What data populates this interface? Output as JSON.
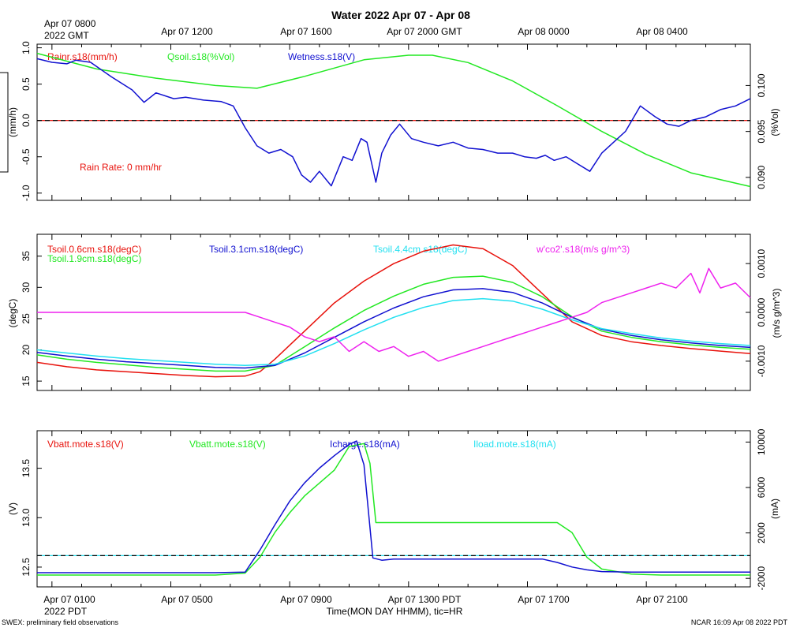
{
  "title": "Water 2022 Apr 07 - Apr 08",
  "top_axis": {
    "first_label_line1": "Apr 07 0800",
    "first_label_line2": "2022 GMT",
    "labels": [
      "Apr 07 1200",
      "Apr 07 1600",
      "Apr 07 2000 GMT",
      "Apr 08 0000",
      "Apr 08 0400"
    ]
  },
  "bottom_axis": {
    "labels": [
      "Apr 07 0100",
      "Apr 07 0500",
      "Apr 07 0900",
      "Apr 07 1300 PDT",
      "Apr 07 1700",
      "Apr 07 2100"
    ],
    "year_label": "2022 PDT",
    "xlabel": "Time(MON DAY HHMM), tic=HR"
  },
  "footer": {
    "left": "SWEX: preliminary field observations",
    "right": "NCAR 16:09 Apr 08 2022 PDT"
  },
  "colors": {
    "red": "#e8120c",
    "green": "#22e822",
    "blue": "#1010d0",
    "cyan": "#22e0f0",
    "magenta": "#ee22ee",
    "black": "#000000"
  },
  "chart_data": [
    {
      "type": "line",
      "panel": "water",
      "title": "Rain / Soil moisture / Wetness",
      "x_range_hours_pdt": [
        0,
        24
      ],
      "left_axis": {
        "label": "(mm/h)",
        "range": [
          -1.1,
          1.05
        ],
        "ticks": [
          "-1.0",
          "-0.5",
          "0.0",
          "0.5",
          "1.0"
        ],
        "tick_values": [
          -1.0,
          -0.5,
          0.0,
          0.5,
          1.0
        ]
      },
      "right_axis": {
        "label": "(%Vol)",
        "range": [
          0.0875,
          0.1045
        ],
        "ticks": [
          "0.090",
          "0.095",
          "0.100"
        ],
        "tick_values": [
          0.09,
          0.095,
          0.1
        ]
      },
      "legend": [
        {
          "name": "Rainr.s18(mm/h)",
          "color_key": "red"
        },
        {
          "name": "Qsoil.s18(%Vol)",
          "color_key": "green"
        },
        {
          "name": "Wetness.s18(V)",
          "color_key": "blue"
        }
      ],
      "annotation": "Rain Rate: 0 mm/hr",
      "series": [
        {
          "name": "Rainr.s18(mm/h)",
          "color_key": "red",
          "axis": "left",
          "dashed_black": true,
          "x": [
            0,
            24
          ],
          "values": [
            0.0,
            0.0
          ]
        },
        {
          "name": "Qsoil.s18(%Vol)",
          "color_key": "green",
          "axis": "right",
          "x": [
            0,
            2,
            4,
            6,
            7.4,
            9,
            11,
            12.5,
            13.3,
            14.5,
            16,
            17.5,
            19,
            20.5,
            22,
            24
          ],
          "values": [
            0.1035,
            0.1018,
            0.1008,
            0.1,
            0.0997,
            0.101,
            0.1028,
            0.1033,
            0.1033,
            0.1025,
            0.1005,
            0.0978,
            0.095,
            0.0925,
            0.0905,
            0.089
          ]
        },
        {
          "name": "Wetness.s18(V)",
          "color_key": "blue",
          "axis": "left",
          "x": [
            0,
            0.5,
            1,
            1.3,
            1.8,
            2.5,
            3.2,
            3.6,
            4,
            4.6,
            5,
            5.6,
            6.2,
            6.6,
            7,
            7.4,
            7.8,
            8.2,
            8.6,
            8.9,
            9.2,
            9.5,
            9.9,
            10.3,
            10.6,
            10.9,
            11.1,
            11.4,
            11.6,
            11.9,
            12.2,
            12.6,
            13,
            13.5,
            14,
            14.5,
            15,
            15.5,
            16,
            16.4,
            16.8,
            17.1,
            17.4,
            17.8,
            18.2,
            18.6,
            19,
            19.4,
            19.8,
            20.3,
            20.8,
            21.2,
            21.6,
            22,
            22.5,
            23,
            23.5,
            24
          ],
          "values": [
            0.85,
            0.8,
            0.78,
            0.83,
            0.8,
            0.6,
            0.42,
            0.25,
            0.38,
            0.3,
            0.32,
            0.28,
            0.26,
            0.2,
            -0.1,
            -0.35,
            -0.45,
            -0.4,
            -0.5,
            -0.75,
            -0.85,
            -0.7,
            -0.9,
            -0.5,
            -0.55,
            -0.25,
            -0.3,
            -0.85,
            -0.45,
            -0.2,
            -0.05,
            -0.25,
            -0.3,
            -0.35,
            -0.3,
            -0.38,
            -0.4,
            -0.45,
            -0.45,
            -0.5,
            -0.52,
            -0.48,
            -0.55,
            -0.5,
            -0.6,
            -0.7,
            -0.45,
            -0.3,
            -0.15,
            0.2,
            0.05,
            -0.05,
            -0.08,
            0.0,
            0.05,
            0.15,
            0.2,
            0.3
          ]
        }
      ]
    },
    {
      "type": "line",
      "panel": "soil_temperature",
      "title": "Soil temperature / CO2 flux",
      "x_range_hours_pdt": [
        0,
        24
      ],
      "left_axis": {
        "label": "(degC)",
        "range": [
          13.5,
          38.5
        ],
        "ticks": [
          "15",
          "20",
          "25",
          "30",
          "35"
        ],
        "tick_values": [
          15,
          20,
          25,
          30,
          35
        ]
      },
      "right_axis": {
        "label": "(m/s g/m^3)",
        "range": [
          -0.0016,
          0.0016
        ],
        "ticks": [
          "-0.0010",
          "0.0000",
          "0.0010"
        ],
        "tick_values": [
          -0.001,
          0.0,
          0.001
        ]
      },
      "legend": [
        {
          "name": "Tsoil.0.6cm.s18(degC)",
          "color_key": "red"
        },
        {
          "name": "Tsoil.1.9cm.s18(degC)",
          "color_key": "green"
        },
        {
          "name": "Tsoil.3.1cm.s18(degC)",
          "color_key": "blue"
        },
        {
          "name": "Tsoil.4.4cm.s18(degC)",
          "color_key": "cyan"
        },
        {
          "name": "w'co2'.s18(m/s g/m^3)",
          "color_key": "magenta"
        }
      ],
      "series": [
        {
          "name": "Tsoil.0.6cm.s18(degC)",
          "color_key": "red",
          "axis": "left",
          "x": [
            0,
            1,
            2,
            3,
            4,
            5,
            6,
            7,
            7.5,
            8,
            9,
            10,
            11,
            12,
            13,
            14,
            15,
            16,
            17,
            18,
            19,
            20,
            21,
            22,
            23,
            24
          ],
          "values": [
            18.0,
            17.3,
            16.8,
            16.5,
            16.2,
            15.9,
            15.7,
            15.8,
            16.5,
            18.5,
            23.0,
            27.5,
            31.0,
            33.8,
            35.8,
            36.8,
            36.2,
            33.5,
            29.0,
            24.5,
            22.3,
            21.3,
            20.7,
            20.2,
            19.8,
            19.4
          ]
        },
        {
          "name": "Tsoil.1.9cm.s18(degC)",
          "color_key": "green",
          "axis": "left",
          "x": [
            0,
            1,
            2,
            3,
            4,
            5,
            6,
            7,
            8,
            9,
            10,
            11,
            12,
            13,
            14,
            15,
            16,
            17,
            18,
            19,
            20,
            21,
            22,
            23,
            24
          ],
          "values": [
            19.2,
            18.5,
            18.0,
            17.6,
            17.2,
            16.9,
            16.6,
            16.6,
            17.5,
            20.5,
            23.5,
            26.3,
            28.6,
            30.5,
            31.6,
            31.8,
            30.8,
            28.5,
            25.3,
            23.0,
            22.0,
            21.3,
            20.8,
            20.4,
            20.1
          ]
        },
        {
          "name": "Tsoil.3.1cm.s18(degC)",
          "color_key": "blue",
          "axis": "left",
          "x": [
            0,
            1,
            2,
            3,
            4,
            5,
            6,
            7,
            8,
            9,
            10,
            11,
            12,
            13,
            14,
            15,
            16,
            17,
            18,
            19,
            20,
            21,
            22,
            23,
            24
          ],
          "values": [
            19.6,
            19.0,
            18.5,
            18.1,
            17.8,
            17.5,
            17.2,
            17.1,
            17.5,
            19.5,
            22.0,
            24.5,
            26.7,
            28.5,
            29.6,
            29.8,
            29.2,
            27.5,
            25.2,
            23.3,
            22.3,
            21.6,
            21.1,
            20.7,
            20.4
          ]
        },
        {
          "name": "Tsoil.4.4cm.s18(degC)",
          "color_key": "cyan",
          "axis": "left",
          "x": [
            0,
            1,
            2,
            3,
            4,
            5,
            6,
            7,
            8,
            9,
            10,
            11,
            12,
            13,
            14,
            15,
            16,
            17,
            18,
            19,
            20,
            21,
            22,
            23,
            24
          ],
          "values": [
            20.0,
            19.5,
            19.0,
            18.6,
            18.3,
            18.0,
            17.7,
            17.5,
            17.7,
            19.0,
            21.0,
            23.2,
            25.2,
            26.8,
            27.9,
            28.2,
            27.8,
            26.5,
            24.8,
            23.4,
            22.6,
            21.9,
            21.4,
            21.0,
            20.7
          ]
        },
        {
          "name": "w'co2'.s18(m/s g/m^3)",
          "color_key": "magenta",
          "axis": "right",
          "x": [
            0,
            1,
            2,
            3,
            4,
            5,
            6,
            7,
            7.5,
            8,
            8.5,
            9,
            9.5,
            10,
            10.5,
            11,
            11.5,
            12,
            12.5,
            13,
            13.5,
            14,
            14.5,
            15,
            15.5,
            16,
            16.5,
            17,
            17.5,
            18,
            18.5,
            19,
            19.5,
            20,
            20.5,
            21,
            21.5,
            22,
            22.3,
            22.6,
            23,
            23.5,
            24
          ],
          "values": [
            0.0,
            0.0,
            0.0,
            0.0,
            0.0,
            0.0,
            0.0,
            0.0,
            -0.0001,
            -0.0002,
            -0.0003,
            -0.0005,
            -0.0006,
            -0.0005,
            -0.0008,
            -0.0006,
            -0.0008,
            -0.0007,
            -0.0009,
            -0.0008,
            -0.001,
            -0.0009,
            -0.0008,
            -0.0007,
            -0.0006,
            -0.0005,
            -0.0004,
            -0.0003,
            -0.0002,
            -0.0001,
            0.0,
            0.0002,
            0.0003,
            0.0004,
            0.0005,
            0.0006,
            0.0005,
            0.0008,
            0.0004,
            0.0009,
            0.0005,
            0.0006,
            0.0003
          ]
        }
      ]
    },
    {
      "type": "line",
      "panel": "power",
      "title": "Battery voltage / Currents",
      "x_range_hours_pdt": [
        0,
        24
      ],
      "left_axis": {
        "label": "(V)",
        "range": [
          12.3,
          13.88
        ],
        "ticks": [
          "12.5",
          "13.0",
          "13.5"
        ],
        "tick_values": [
          12.5,
          13.0,
          13.5
        ]
      },
      "right_axis": {
        "label": "(mA)",
        "range": [
          -2750,
          11000
        ],
        "ticks": [
          "-2000",
          "2000",
          "6000",
          "10000"
        ],
        "tick_values": [
          -2000,
          2000,
          6000,
          10000
        ]
      },
      "legend": [
        {
          "name": "Vbatt.mote.s18(V)",
          "color_key": "red"
        },
        {
          "name": "Vbatt.mote.s18(V)",
          "color_key": "green"
        },
        {
          "name": "Icharge.s18(mA)",
          "color_key": "blue"
        },
        {
          "name": "Iload.mote.s18(mA)",
          "color_key": "cyan"
        }
      ],
      "series": [
        {
          "name": "Iload.mote.s18(mA)",
          "color_key": "cyan",
          "axis": "right",
          "dashed_black": true,
          "x": [
            0,
            24
          ],
          "values": [
            0,
            0
          ]
        },
        {
          "name": "Vbatt.mote.s18(V)",
          "color_key": "green",
          "axis": "left",
          "x": [
            0,
            1,
            2,
            3,
            4,
            5,
            6,
            7,
            7.5,
            8,
            8.5,
            9,
            9.5,
            10,
            10.5,
            11,
            11.2,
            11.4,
            12,
            13,
            14,
            15,
            16,
            17,
            17.5,
            18,
            18.5,
            19,
            20,
            21,
            22,
            23,
            24
          ],
          "values": [
            12.42,
            12.42,
            12.42,
            12.42,
            12.42,
            12.42,
            12.42,
            12.44,
            12.6,
            12.85,
            13.05,
            13.22,
            13.35,
            13.48,
            13.72,
            13.75,
            13.55,
            12.95,
            12.95,
            12.95,
            12.95,
            12.95,
            12.95,
            12.95,
            12.95,
            12.85,
            12.6,
            12.48,
            12.43,
            12.42,
            12.42,
            12.42,
            12.42
          ]
        },
        {
          "name": "Icharge.s18(mA)",
          "color_key": "blue",
          "axis": "right",
          "x": [
            0,
            1,
            2,
            3,
            4,
            5,
            6,
            7,
            7.5,
            8,
            8.5,
            9,
            9.5,
            10,
            10.5,
            10.75,
            11,
            11.3,
            11.6,
            12,
            13,
            14,
            15,
            16,
            17,
            17.5,
            18,
            18.5,
            19,
            20,
            21,
            22,
            23,
            24
          ],
          "values": [
            -1500,
            -1500,
            -1500,
            -1500,
            -1500,
            -1500,
            -1500,
            -1450,
            500,
            2700,
            4800,
            6400,
            7700,
            8800,
            9800,
            10100,
            8000,
            -200,
            -400,
            -300,
            -300,
            -300,
            -300,
            -300,
            -300,
            -600,
            -1000,
            -1250,
            -1400,
            -1450,
            -1450,
            -1450,
            -1450,
            -1450
          ]
        }
      ]
    }
  ]
}
